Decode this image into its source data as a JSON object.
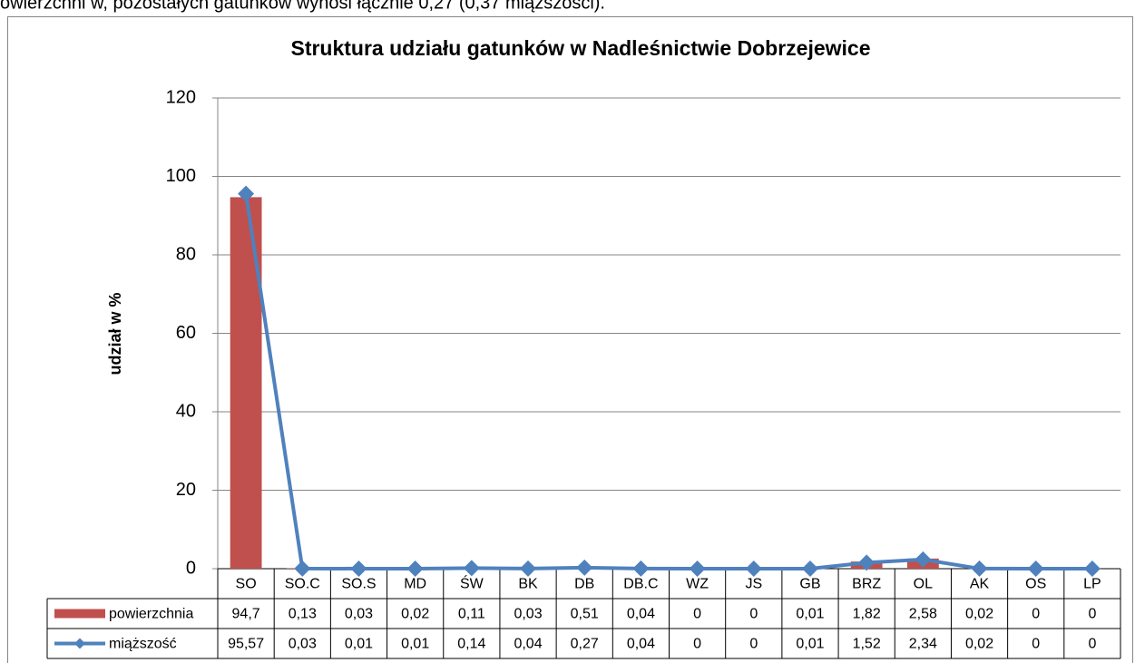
{
  "text": {
    "intro": "owierzchni w, pozostałych gatunków wynosi łącznie 0,27 (0,37 miąższości)."
  },
  "chart_data": {
    "type": "bar",
    "title": "Struktura udziału gatunków w Nadleśnictwie Dobrzejewice",
    "y_label": "udział w %",
    "categories": [
      "SO",
      "SO.C",
      "SO.S",
      "MD",
      "ŚW",
      "BK",
      "DB",
      "DB.C",
      "WZ",
      "JS",
      "GB",
      "BRZ",
      "OL",
      "AK",
      "OS",
      "LP"
    ],
    "series": [
      {
        "name": "powierzchnia",
        "type": "bar",
        "color": "#c0504d",
        "values": [
          94.7,
          0.13,
          0.03,
          0.02,
          0.11,
          0.03,
          0.51,
          0.04,
          0,
          0,
          0.01,
          1.82,
          2.58,
          0.02,
          0,
          0
        ],
        "value_labels": [
          "94,7",
          "0,13",
          "0,03",
          "0,02",
          "0,11",
          "0,03",
          "0,51",
          "0,04",
          "0",
          "0",
          "0,01",
          "1,82",
          "2,58",
          "0,02",
          "0",
          "0"
        ]
      },
      {
        "name": "miąższość",
        "type": "line",
        "color": "#4f81bd",
        "values": [
          95.57,
          0.03,
          0.01,
          0.01,
          0.14,
          0.04,
          0.27,
          0.04,
          0,
          0,
          0.01,
          1.52,
          2.34,
          0.02,
          0,
          0
        ],
        "value_labels": [
          "95,57",
          "0,03",
          "0,01",
          "0,01",
          "0,14",
          "0,04",
          "0,27",
          "0,04",
          "0",
          "0",
          "0,01",
          "1,52",
          "2,34",
          "0,02",
          "0",
          "0"
        ]
      }
    ],
    "ylim": [
      0,
      120
    ],
    "yticks": [
      0,
      20,
      40,
      60,
      80,
      100,
      120
    ],
    "grid": true
  }
}
